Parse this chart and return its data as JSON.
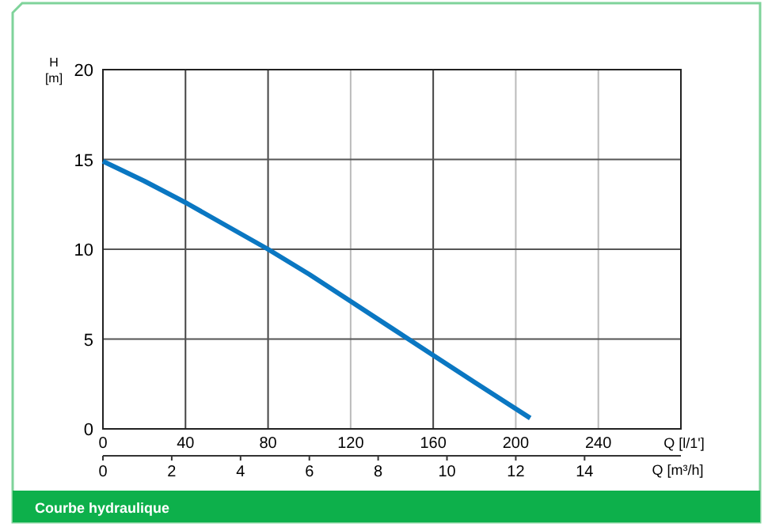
{
  "chart_data": {
    "type": "line",
    "ylabel": "H\n[m]",
    "xlabel": "Q [l/1']",
    "x2label": "Q [m³/h]",
    "x": [
      0,
      20,
      40,
      60,
      80,
      100,
      120,
      140,
      160,
      180,
      207
    ],
    "series": [
      {
        "color": "#0a77c2",
        "values": [
          14.9,
          13.8,
          12.6,
          11.3,
          10,
          8.6,
          7.1,
          5.6,
          4.1,
          2.6,
          0.6
        ]
      }
    ],
    "xlim": [
      0,
      280
    ],
    "xticks": [
      0,
      40,
      80,
      120,
      160,
      200,
      240
    ],
    "x2lim": [
      0,
      16.8
    ],
    "x2ticks": [
      0,
      2,
      4,
      6,
      8,
      10,
      12,
      14
    ],
    "ylim": [
      0,
      20
    ],
    "yticks": [
      0,
      5,
      10,
      15,
      20
    ],
    "grid": true,
    "marker": "none",
    "line_style": "solid",
    "annotations": [
      "Courbe hydraulique"
    ]
  }
}
